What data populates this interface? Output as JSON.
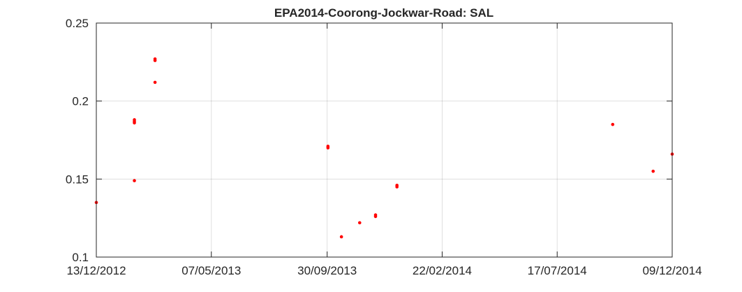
{
  "chart_data": {
    "type": "scatter",
    "title": "EPA2014-Coorong-Jockwar-Road: SAL",
    "xlabel": "",
    "ylabel": "",
    "x_type": "date",
    "xlim": [
      "2012-12-13",
      "2014-12-09"
    ],
    "ylim": [
      0.1,
      0.25
    ],
    "x_ticks": [
      "2012-12-13",
      "2013-05-07",
      "2013-09-30",
      "2014-02-22",
      "2014-07-17",
      "2014-12-09"
    ],
    "x_tick_labels": [
      "13/12/2012",
      "07/05/2013",
      "30/09/2013",
      "22/02/2014",
      "17/07/2014",
      "09/12/2014"
    ],
    "y_ticks": [
      0.1,
      0.15,
      0.2,
      0.25
    ],
    "y_tick_labels": [
      "0.1",
      "0.15",
      "0.2",
      "0.25"
    ],
    "grid": true,
    "marker_color": "#ff0000",
    "series": [
      {
        "color": "#ff0000",
        "x": [
          "2012-12-13",
          "2013-01-30",
          "2013-01-30",
          "2013-01-30",
          "2013-01-30",
          "2013-02-25",
          "2013-02-25",
          "2013-02-25",
          "2013-10-01",
          "2013-10-01",
          "2013-10-18",
          "2013-11-10",
          "2013-11-30",
          "2013-11-30",
          "2013-12-27",
          "2013-12-27",
          "2014-09-25",
          "2014-11-15",
          "2014-12-09"
        ],
        "y": [
          0.135,
          0.188,
          0.187,
          0.186,
          0.149,
          0.227,
          0.226,
          0.212,
          0.171,
          0.17,
          0.113,
          0.122,
          0.127,
          0.126,
          0.146,
          0.145,
          0.185,
          0.155,
          0.166
        ]
      }
    ]
  }
}
